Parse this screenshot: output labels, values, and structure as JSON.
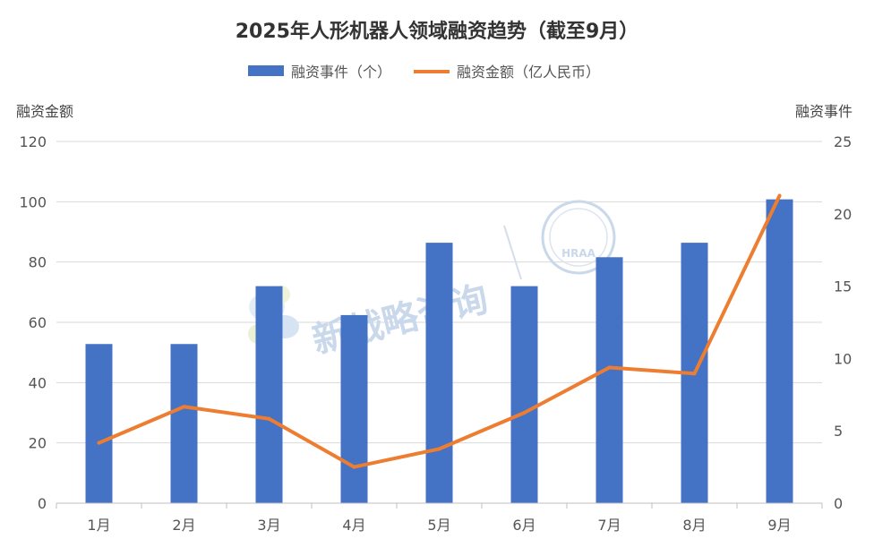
{
  "chart_data": {
    "type": "bar+line",
    "title": "2025年人形机器人领域融资趋势（截至9月）",
    "categories": [
      "1月",
      "2月",
      "3月",
      "4月",
      "5月",
      "6月",
      "7月",
      "8月",
      "9月"
    ],
    "series": [
      {
        "name": "融资事件（个）",
        "type": "bar",
        "axis": "right",
        "color": "#4472C4",
        "values": [
          11,
          11,
          15,
          13,
          18,
          15,
          17,
          18,
          21
        ]
      },
      {
        "name": "融资金额（亿人民币）",
        "type": "line",
        "axis": "left",
        "color": "#ED7D31",
        "values": [
          20,
          32,
          28,
          12,
          18,
          30,
          45,
          43,
          102
        ]
      }
    ],
    "y_left": {
      "label": "融资金额",
      "ylim": [
        0,
        120
      ],
      "ticks": [
        0,
        20,
        40,
        60,
        80,
        100,
        120
      ]
    },
    "y_right": {
      "label": "融资事件",
      "ylim": [
        0,
        25
      ],
      "ticks": [
        0,
        5,
        10,
        15,
        20,
        25
      ]
    },
    "grid": true,
    "legend_position": "top-center"
  },
  "watermark": {
    "text": "新战略咨询",
    "badge_text": "HRAA",
    "color": "#c9d8ea"
  }
}
